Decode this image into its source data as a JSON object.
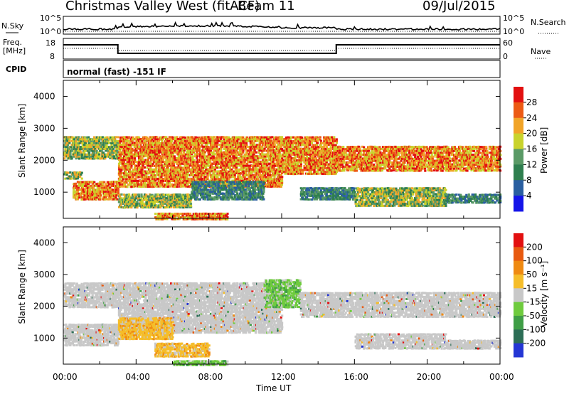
{
  "header": {
    "station": "Christmas Valley West (fitACF)",
    "beam": "Beam 11",
    "date": "09/Jul/2015"
  },
  "panels": {
    "noise": {
      "left_label": "N.Sky",
      "right_label": "N.Search",
      "left_ticks": [
        "10^5",
        "10^0"
      ],
      "right_ticks": [
        "10^5",
        "10^0"
      ]
    },
    "freq": {
      "left_label_1": "Freq.",
      "left_label_2": "[MHz]",
      "right_label": "Nave",
      "left_ticks": [
        "18",
        "8"
      ],
      "right_ticks": [
        "60",
        "0"
      ]
    },
    "cpid": {
      "label": "CPID",
      "text": "normal (fast) -151 IF"
    }
  },
  "chart_data": [
    {
      "type": "heatmap",
      "name": "power",
      "ylabel": "Slant Range [km]",
      "ylim": [
        180,
        4500
      ],
      "yticks": [
        "1000",
        "2000",
        "3000",
        "4000"
      ],
      "colorbar_label": "Power [dB]",
      "colorbar_ticks": [
        "4",
        "8",
        "12",
        "16",
        "20",
        "24",
        "28"
      ],
      "colors": [
        "#1515e8",
        "#2a5fa0",
        "#2f7f4f",
        "#5a9a66",
        "#c9d32c",
        "#f1a428",
        "#ec5a14",
        "#e21010"
      ],
      "bands": [
        {
          "t": [
            0.0,
            3.0
          ],
          "r": [
            2080,
            2800
          ],
          "level": "mid"
        },
        {
          "t": [
            0.0,
            1.0
          ],
          "r": [
            1450,
            1700
          ],
          "level": "mid"
        },
        {
          "t": [
            0.5,
            3.0
          ],
          "r": [
            800,
            1400
          ],
          "level": "high"
        },
        {
          "t": [
            3.0,
            12.0
          ],
          "r": [
            1200,
            2800
          ],
          "level": "high"
        },
        {
          "t": [
            3.0,
            7.0
          ],
          "r": [
            550,
            1000
          ],
          "level": "mid"
        },
        {
          "t": [
            5.0,
            9.0
          ],
          "r": [
            180,
            400
          ],
          "level": "high"
        },
        {
          "t": [
            7.0,
            11.0
          ],
          "r": [
            800,
            1400
          ],
          "level": "low"
        },
        {
          "t": [
            12.0,
            15.0
          ],
          "r": [
            1600,
            2800
          ],
          "level": "high"
        },
        {
          "t": [
            13.0,
            16.0
          ],
          "r": [
            800,
            1200
          ],
          "level": "low"
        },
        {
          "t": [
            15.0,
            24.0
          ],
          "r": [
            1700,
            2500
          ],
          "level": "high"
        },
        {
          "t": [
            16.0,
            21.0
          ],
          "r": [
            600,
            1200
          ],
          "level": "mid"
        },
        {
          "t": [
            21.0,
            24.0
          ],
          "r": [
            700,
            1000
          ],
          "level": "low"
        }
      ]
    },
    {
      "type": "heatmap",
      "name": "velocity",
      "xlabel": "Time UT",
      "ylabel": "Slant Range [km]",
      "xlim": [
        0,
        24
      ],
      "xticks": [
        "00:00",
        "04:00",
        "08:00",
        "12:00",
        "16:00",
        "20:00",
        "00:00"
      ],
      "ylim": [
        180,
        4500
      ],
      "yticks": [
        "1000",
        "2000",
        "3000",
        "4000"
      ],
      "colorbar_label": "Velocity [m s⁻¹]",
      "colorbar_ticks": [
        "200",
        "100",
        "50",
        "15",
        "-15",
        "-50",
        "-100",
        "-200"
      ],
      "colors": [
        "#2436d4",
        "#2c6e56",
        "#3f9e46",
        "#6fcb3e",
        "#c8c8c8",
        "#f5bd2a",
        "#ef8a12",
        "#e85a10",
        "#e21010"
      ],
      "bands": [
        {
          "t": [
            0.0,
            3.0
          ],
          "r": [
            2000,
            2800
          ],
          "vel": "zero"
        },
        {
          "t": [
            0.0,
            3.0
          ],
          "r": [
            800,
            1500
          ],
          "vel": "zero"
        },
        {
          "t": [
            3.0,
            12.0
          ],
          "r": [
            1200,
            2800
          ],
          "vel": "zero"
        },
        {
          "t": [
            3.0,
            6.0
          ],
          "r": [
            1000,
            1700
          ],
          "vel": "away"
        },
        {
          "t": [
            5.0,
            8.0
          ],
          "r": [
            450,
            900
          ],
          "vel": "away"
        },
        {
          "t": [
            6.0,
            9.0
          ],
          "r": [
            180,
            350
          ],
          "vel": "toward"
        },
        {
          "t": [
            11.0,
            13.0
          ],
          "r": [
            2000,
            2900
          ],
          "vel": "toward"
        },
        {
          "t": [
            13.0,
            15.0
          ],
          "r": [
            1700,
            2500
          ],
          "vel": "zero"
        },
        {
          "t": [
            15.0,
            24.0
          ],
          "r": [
            1700,
            2500
          ],
          "vel": "zero"
        },
        {
          "t": [
            16.0,
            21.0
          ],
          "r": [
            700,
            1200
          ],
          "vel": "zero"
        },
        {
          "t": [
            21.0,
            24.0
          ],
          "r": [
            700,
            1000
          ],
          "vel": "zero"
        }
      ]
    }
  ]
}
